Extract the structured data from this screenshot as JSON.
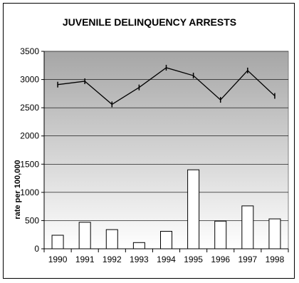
{
  "chart_data": {
    "type": "bar",
    "title": "JUVENILE DELINQUENCY ARRESTS",
    "xlabel": "",
    "ylabel": "rate per 100,000",
    "categories": [
      "1990",
      "1991",
      "1992",
      "1993",
      "1994",
      "1995",
      "1996",
      "1997",
      "1998"
    ],
    "series": [
      {
        "type": "bar",
        "values": [
          240,
          470,
          340,
          110,
          310,
          1400,
          490,
          760,
          530
        ]
      },
      {
        "type": "line",
        "values": [
          2910,
          2970,
          2560,
          2860,
          3210,
          3070,
          2640,
          3160,
          2710
        ]
      }
    ],
    "ylim": [
      0,
      3500
    ],
    "yticks": [
      "0",
      "500",
      "1000",
      "1500",
      "2000",
      "2500",
      "3000",
      "3500"
    ],
    "grid": true,
    "colors": {
      "bar_fill": "#ffffff",
      "stroke": "#000000",
      "plot_bg_top": "#a6a6a6",
      "plot_bg_bottom": "#ffffff"
    }
  }
}
